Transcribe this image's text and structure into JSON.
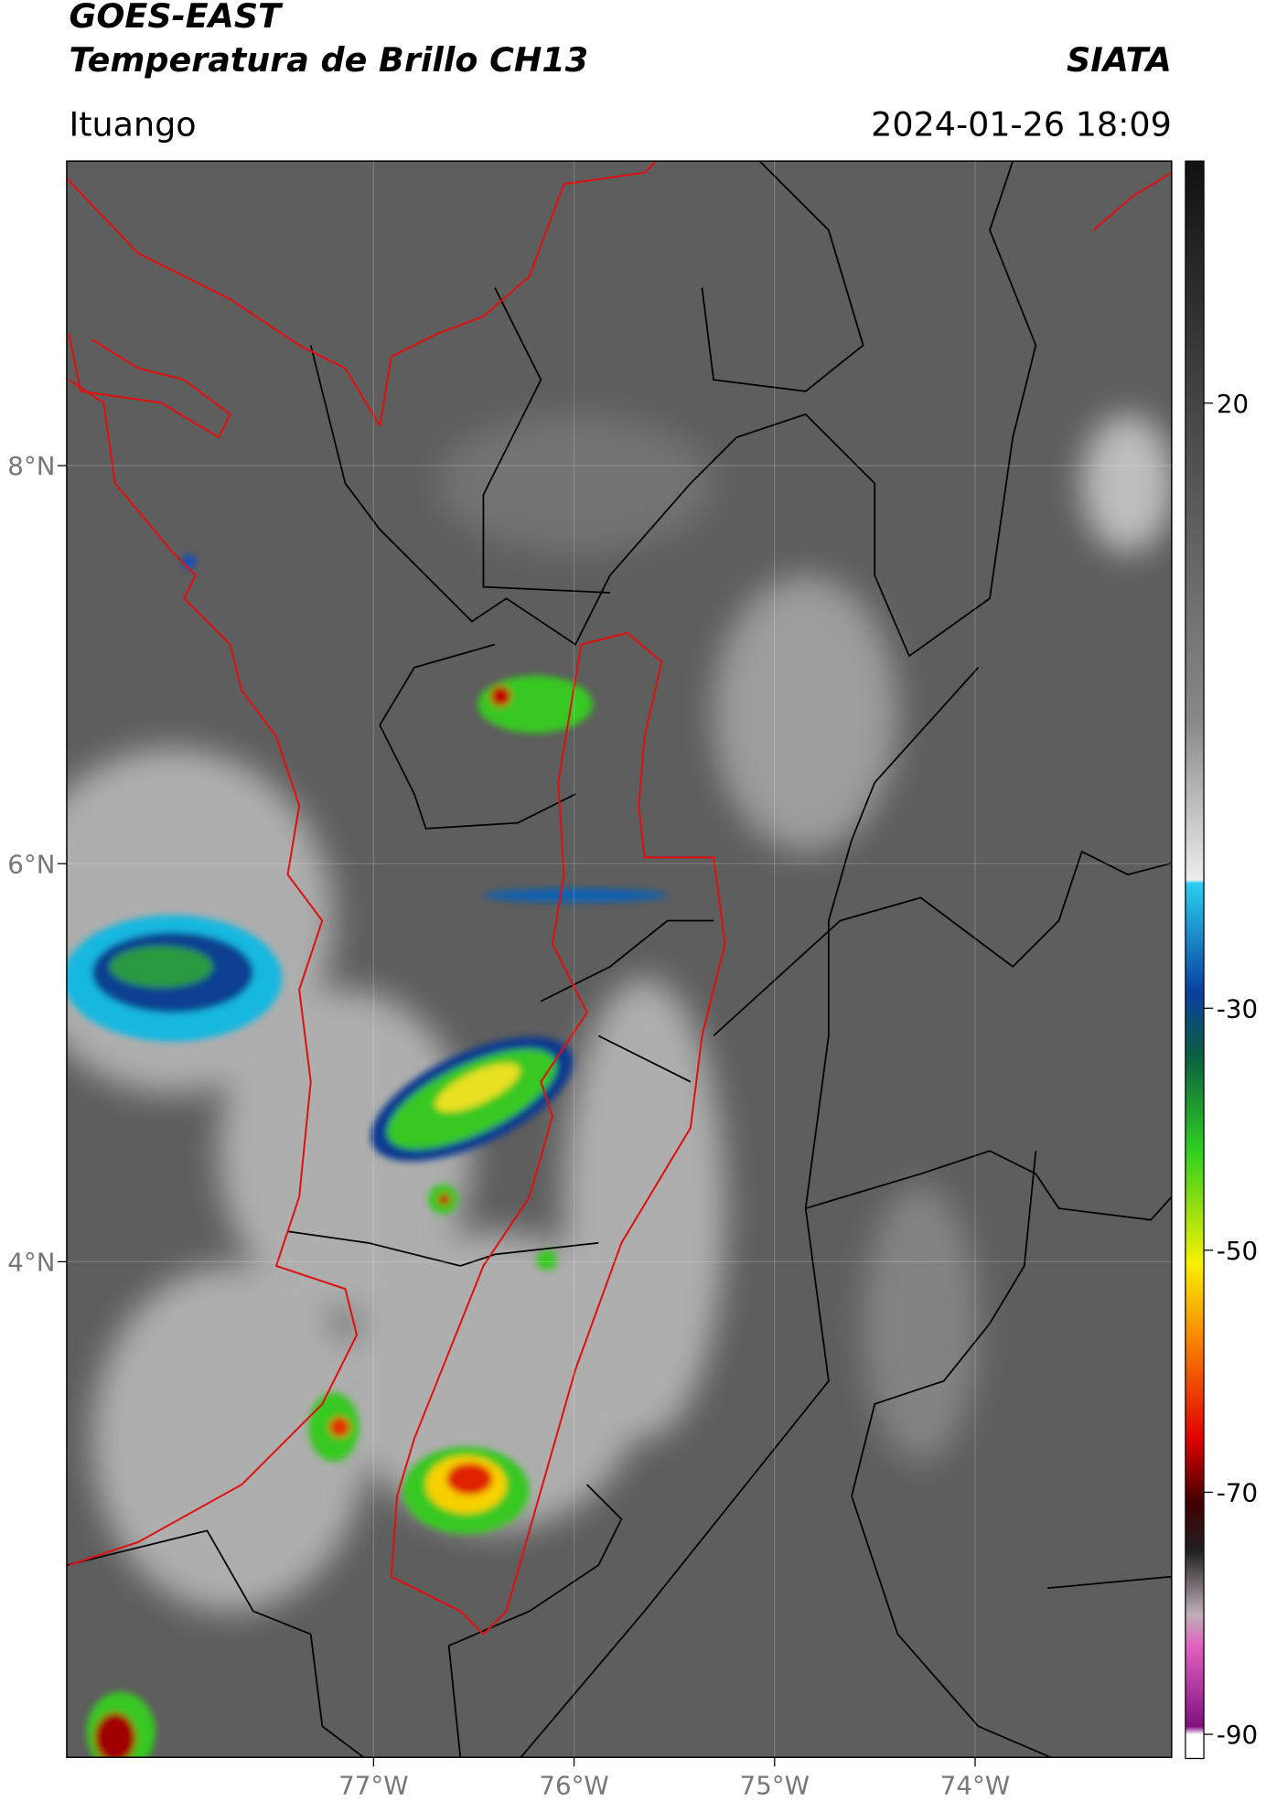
{
  "header": {
    "source": "GOES-EAST",
    "product": "Temperatura de Brillo CH13",
    "agency": "SIATA",
    "region": "Ituango",
    "datetime": "2024-01-26 18:09"
  },
  "map": {
    "lon_range": [
      -78.53,
      -73.02
    ],
    "lat_range": [
      1.51,
      9.53
    ],
    "lon_ticks": [
      {
        "value": -77,
        "label": "77°W"
      },
      {
        "value": -76,
        "label": "76°W"
      },
      {
        "value": -75,
        "label": "75°W"
      },
      {
        "value": -74,
        "label": "74°W"
      }
    ],
    "lat_ticks": [
      {
        "value": 8,
        "label": "8°N"
      },
      {
        "value": 6,
        "label": "6°N"
      },
      {
        "value": 4,
        "label": "4°N"
      }
    ]
  },
  "colorbar": {
    "range": [
      -92,
      40
    ],
    "ticks": [
      20,
      -30,
      -50,
      -70,
      -90
    ]
  }
}
